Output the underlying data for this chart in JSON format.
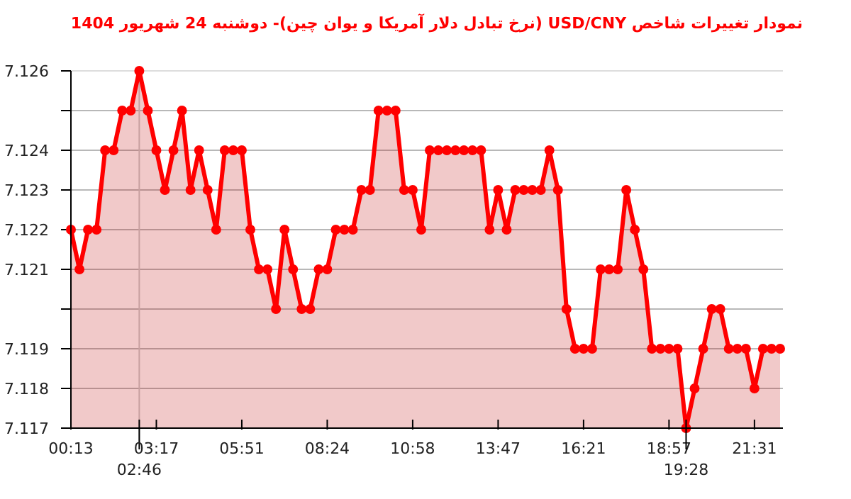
{
  "chart_data": {
    "type": "area",
    "title": "نمودار تغییرات شاخص USD/CNY (نرخ تبادل دلار آمریکا و یوان چین)-  دوشنبه  24 شهریور 1404",
    "categories": [
      "00:13",
      null,
      null,
      null,
      null,
      null,
      null,
      null,
      "02:46",
      null,
      "03:17",
      null,
      null,
      null,
      null,
      null,
      null,
      null,
      null,
      null,
      "05:51",
      null,
      null,
      null,
      null,
      null,
      null,
      null,
      null,
      null,
      "08:24",
      null,
      null,
      null,
      null,
      null,
      null,
      null,
      null,
      null,
      "10:58",
      null,
      null,
      null,
      null,
      null,
      null,
      null,
      null,
      null,
      "13:47",
      null,
      null,
      null,
      null,
      null,
      null,
      null,
      null,
      null,
      "16:21",
      null,
      null,
      null,
      null,
      null,
      null,
      null,
      null,
      null,
      "18:57",
      null,
      "19:28",
      null,
      null,
      null,
      null,
      null,
      null,
      null,
      "21:31",
      null,
      null,
      null
    ],
    "series": [
      {
        "color": "#ff0000",
        "values": [
          7.122,
          7.121,
          7.122,
          7.122,
          7.124,
          7.124,
          7.125,
          7.125,
          7.126,
          7.125,
          7.124,
          7.123,
          7.124,
          7.125,
          7.123,
          7.124,
          7.123,
          7.122,
          7.124,
          7.124,
          7.124,
          7.122,
          7.121,
          7.121,
          7.12,
          7.122,
          7.121,
          7.12,
          7.12,
          7.121,
          7.121,
          7.122,
          7.122,
          7.122,
          7.123,
          7.123,
          7.125,
          7.125,
          7.125,
          7.123,
          7.123,
          7.122,
          7.124,
          7.124,
          7.124,
          7.124,
          7.124,
          7.124,
          7.124,
          7.122,
          7.123,
          7.122,
          7.123,
          7.123,
          7.123,
          7.123,
          7.124,
          7.123,
          7.12,
          7.119,
          7.119,
          7.119,
          7.121,
          7.121,
          7.121,
          7.123,
          7.122,
          7.121,
          7.119,
          7.119,
          7.119,
          7.119,
          7.117,
          7.118,
          7.119,
          7.12,
          7.12,
          7.119,
          7.119,
          7.119,
          7.118,
          7.119,
          7.119,
          7.119
        ]
      }
    ],
    "ylim": [
      7.117,
      7.126
    ],
    "yticks": [
      7.117,
      7.118,
      7.119,
      {
        "value": 7.12,
        "label": null
      },
      7.121,
      7.122,
      7.123,
      7.124,
      {
        "value": 7.125,
        "label": null
      },
      7.126
    ],
    "ref_lines": [
      {
        "axis": "x",
        "value": "02:46",
        "color": "#cccccc"
      }
    ],
    "grid": "y",
    "marker": "circle"
  }
}
